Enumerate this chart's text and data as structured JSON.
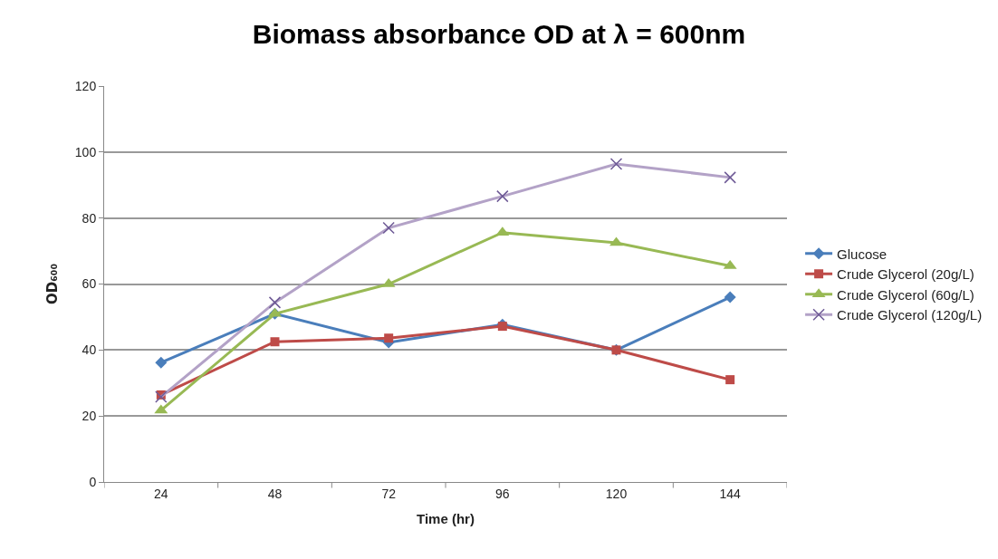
{
  "chart_data": {
    "type": "line",
    "title": "Biomass absorbance OD at λ = 600nm",
    "xlabel": "Time (hr)",
    "ylabel": "OD₆₀₀",
    "categories": [
      "24",
      "48",
      "72",
      "96",
      "120",
      "144"
    ],
    "ylim": [
      0,
      120
    ],
    "yticks": [
      0,
      20,
      40,
      60,
      80,
      100,
      120
    ],
    "grid": "y",
    "legend": "right",
    "series": [
      {
        "name": "Glucose",
        "color": "#4a7ebb",
        "marker": "diamond",
        "values": [
          36.2,
          51,
          42.3,
          47.7,
          40,
          56
        ]
      },
      {
        "name": "Crude Glycerol (20g/L)",
        "color": "#be4b48",
        "marker": "square",
        "values": [
          26.4,
          42.5,
          43.6,
          47.2,
          40,
          31
        ]
      },
      {
        "name": "Crude Glycerol (60g/L)",
        "color": "#98b954",
        "marker": "triangle",
        "values": [
          21.7,
          51,
          60,
          75.6,
          72.5,
          65.5
        ]
      },
      {
        "name": "Crude Glycerol (120g/L)",
        "color": "#b3a2c7",
        "marker": "cross",
        "values": [
          25.8,
          54.4,
          77,
          86.6,
          96.4,
          92.3
        ]
      }
    ]
  }
}
